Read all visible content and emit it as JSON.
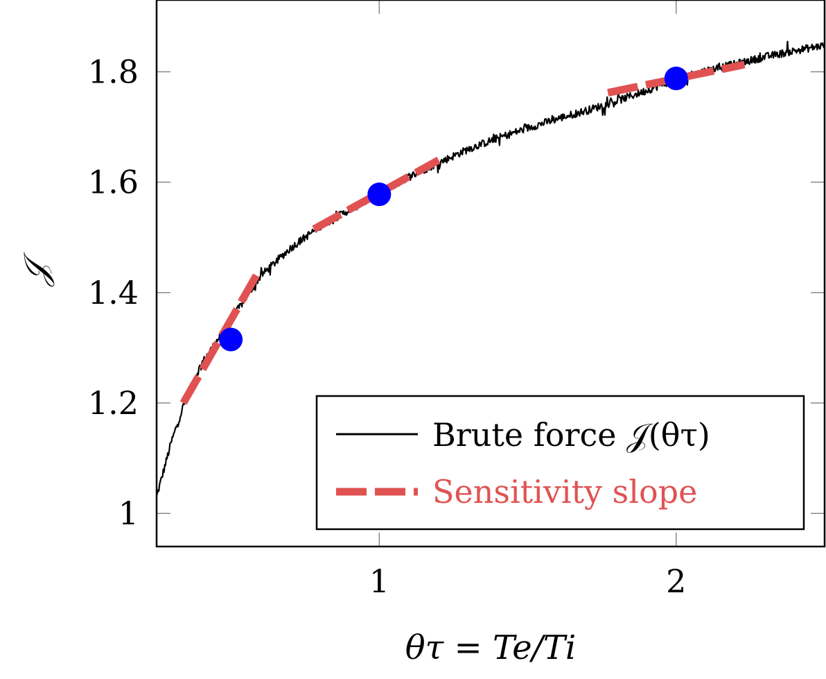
{
  "chart_data": {
    "type": "line",
    "xlabel": "θτ = Te/Ti",
    "ylabel": "𝒥",
    "xlim": [
      0.25,
      2.5
    ],
    "ylim": [
      0.94,
      1.93
    ],
    "xticks": [
      {
        "value": 1,
        "label": "1"
      },
      {
        "value": 2,
        "label": "2"
      }
    ],
    "yticks": [
      {
        "value": 1.0,
        "label": "1"
      },
      {
        "value": 1.2,
        "label": "1.2"
      },
      {
        "value": 1.4,
        "label": "1.4"
      },
      {
        "value": 1.6,
        "label": "1.6"
      },
      {
        "value": 1.8,
        "label": "1.8"
      }
    ],
    "grid": false,
    "legend_position": "bottom-right",
    "series": [
      {
        "name": "Brute force 𝒥(θτ)",
        "kind": "noisy-line",
        "color": "#000000",
        "x": [
          0.25,
          0.3,
          0.35,
          0.4,
          0.45,
          0.5,
          0.6,
          0.7,
          0.8,
          0.9,
          1.0,
          1.1,
          1.2,
          1.3,
          1.4,
          1.5,
          1.6,
          1.7,
          1.8,
          1.9,
          2.0,
          2.1,
          2.2,
          2.3,
          2.4,
          2.5
        ],
        "y": [
          1.03,
          1.13,
          1.21,
          1.27,
          1.31,
          1.35,
          1.43,
          1.48,
          1.52,
          1.55,
          1.578,
          1.61,
          1.635,
          1.66,
          1.68,
          1.698,
          1.715,
          1.73,
          1.747,
          1.766,
          1.787,
          1.802,
          1.814,
          1.827,
          1.838,
          1.848
        ]
      },
      {
        "name": "Sensitivity slope",
        "kind": "tangent-segments",
        "color": "#e05252",
        "segments": [
          {
            "x": [
              0.34,
              0.59
            ],
            "y": [
              1.2,
              1.435
            ]
          },
          {
            "x": [
              0.78,
              1.2
            ],
            "y": [
              1.515,
              1.64
            ]
          },
          {
            "x": [
              1.77,
              2.23
            ],
            "y": [
              1.762,
              1.813
            ]
          }
        ]
      },
      {
        "name": "",
        "kind": "points",
        "color": "#0000ff",
        "x": [
          0.5,
          1.0,
          2.0
        ],
        "y": [
          1.315,
          1.578,
          1.788
        ]
      }
    ]
  }
}
